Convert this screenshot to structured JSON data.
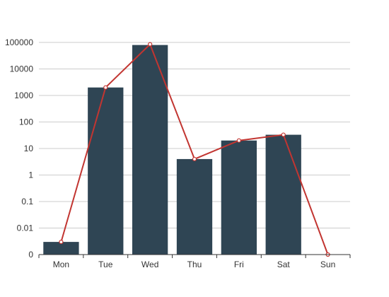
{
  "chart_data": {
    "type": "bar",
    "y_scale": "log",
    "grid": true,
    "categories": [
      "Mon",
      "Tue",
      "Wed",
      "Thu",
      "Fri",
      "Sat",
      "Sun"
    ],
    "y_ticks": [
      "0",
      "0.01",
      "0.1",
      "1",
      "10",
      "100",
      "1000",
      "10000",
      "100000"
    ],
    "series": [
      {
        "type": "bar",
        "color": "#2f4554",
        "values": [
          0.003,
          2000,
          80000,
          4,
          20,
          33,
          null
        ]
      },
      {
        "type": "line",
        "color": "#c23531",
        "values": [
          0.003,
          2000,
          85000,
          4,
          20,
          33,
          0.001
        ]
      }
    ]
  }
}
